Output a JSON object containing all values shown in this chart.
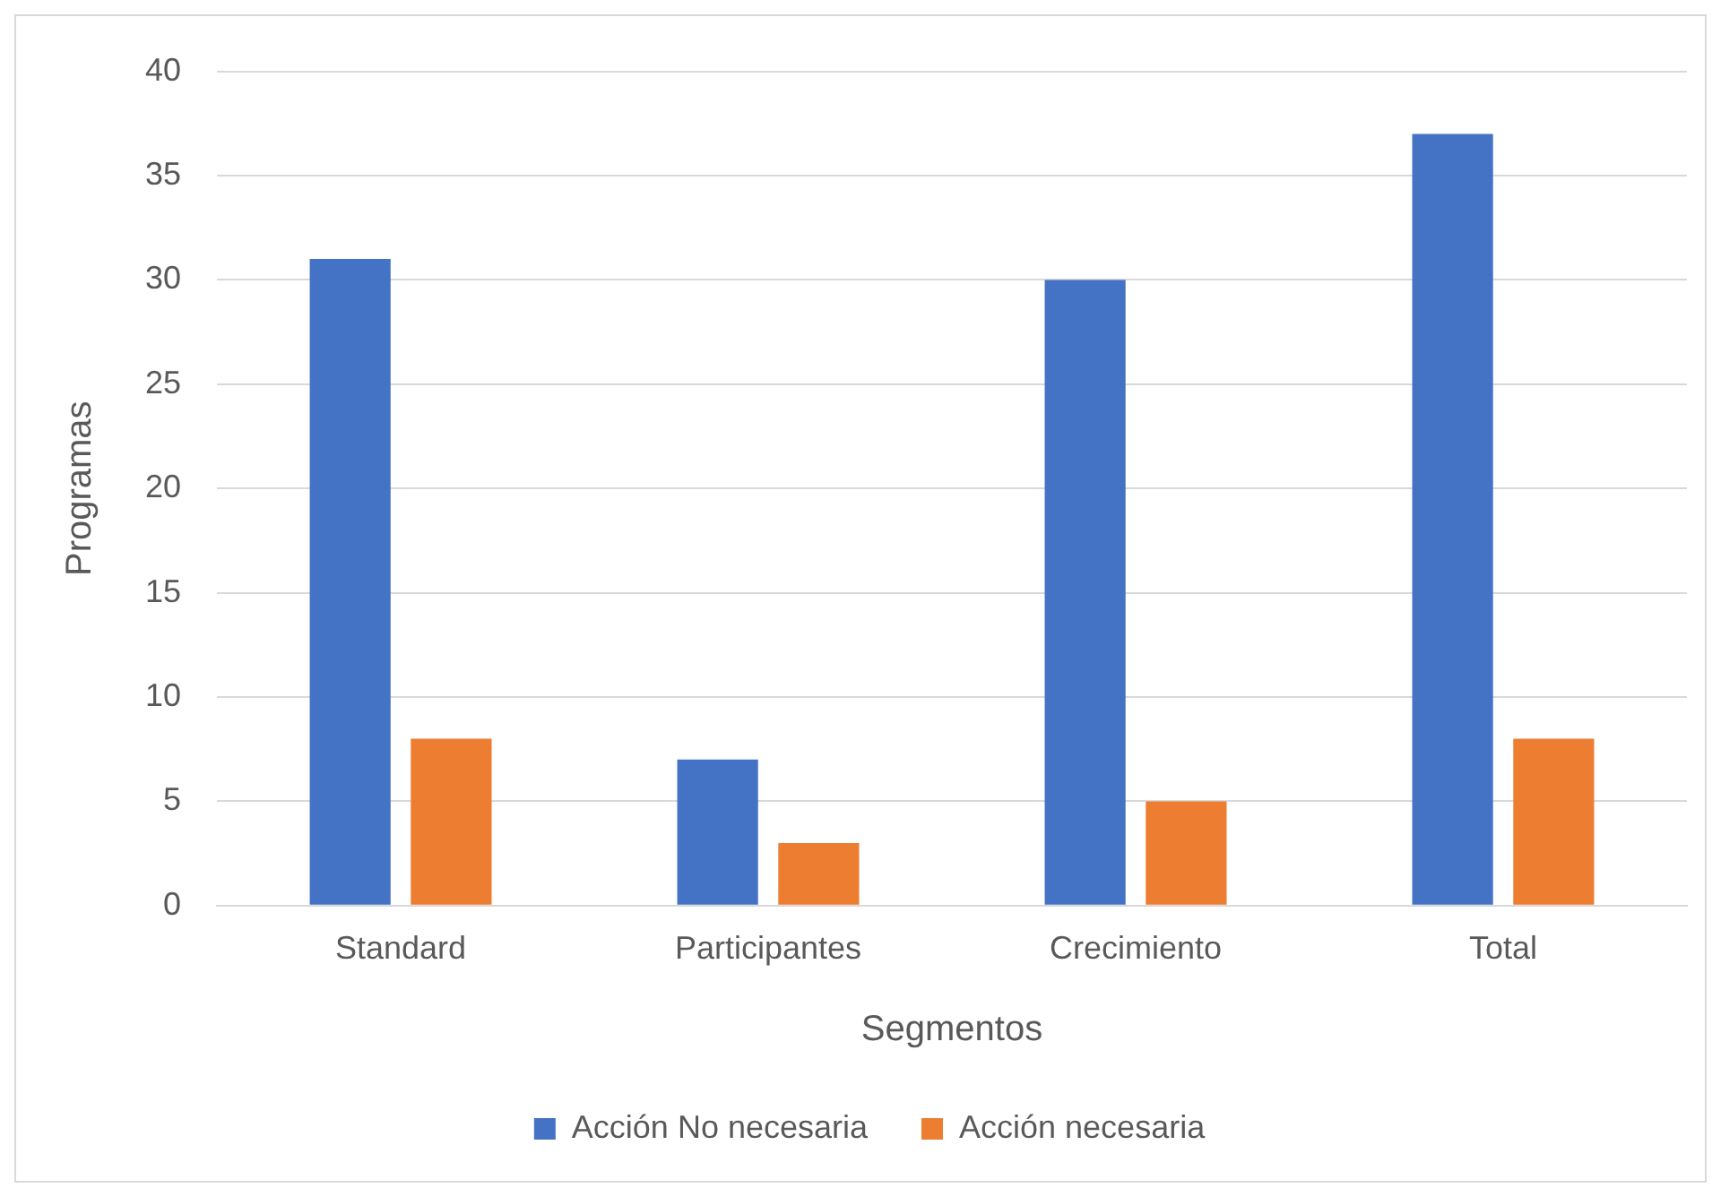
{
  "chart_data": {
    "type": "bar",
    "xlabel": "Segmentos",
    "ylabel": "Programas",
    "categories": [
      "Standard",
      "Participantes",
      "Crecimiento",
      "Total"
    ],
    "series": [
      {
        "name": "Acción No necesaria",
        "color": "#4472c4",
        "values": [
          31,
          7,
          30,
          37
        ]
      },
      {
        "name": "Acción necesaria",
        "color": "#ed7d31",
        "values": [
          8,
          3,
          5,
          8
        ]
      }
    ],
    "ylim": [
      0,
      40
    ],
    "yticks": [
      0,
      5,
      10,
      15,
      20,
      25,
      30,
      35,
      40
    ],
    "grid": "y",
    "legend": "bottom"
  }
}
